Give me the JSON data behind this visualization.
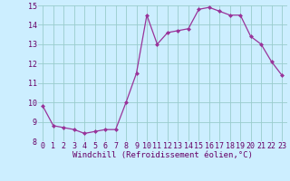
{
  "x": [
    0,
    1,
    2,
    3,
    4,
    5,
    6,
    7,
    8,
    9,
    10,
    11,
    12,
    13,
    14,
    15,
    16,
    17,
    18,
    19,
    20,
    21,
    22,
    23
  ],
  "y": [
    9.8,
    8.8,
    8.7,
    8.6,
    8.4,
    8.5,
    8.6,
    8.6,
    10.0,
    11.5,
    14.5,
    13.0,
    13.6,
    13.7,
    13.8,
    14.8,
    14.9,
    14.7,
    14.5,
    14.5,
    13.4,
    13.0,
    12.1,
    11.4
  ],
  "line_color": "#993399",
  "marker": "D",
  "marker_size": 2.0,
  "bg_color": "#cceeff",
  "grid_color": "#99cccc",
  "xlabel": "Windchill (Refroidissement éolien,°C)",
  "xlabel_color": "#660066",
  "xlabel_fontsize": 6.5,
  "tick_color": "#660066",
  "tick_fontsize": 6.0,
  "ylim": [
    8,
    15
  ],
  "yticks": [
    8,
    9,
    10,
    11,
    12,
    13,
    14,
    15
  ],
  "xticks": [
    0,
    1,
    2,
    3,
    4,
    5,
    6,
    7,
    8,
    9,
    10,
    11,
    12,
    13,
    14,
    15,
    16,
    17,
    18,
    19,
    20,
    21,
    22,
    23
  ]
}
